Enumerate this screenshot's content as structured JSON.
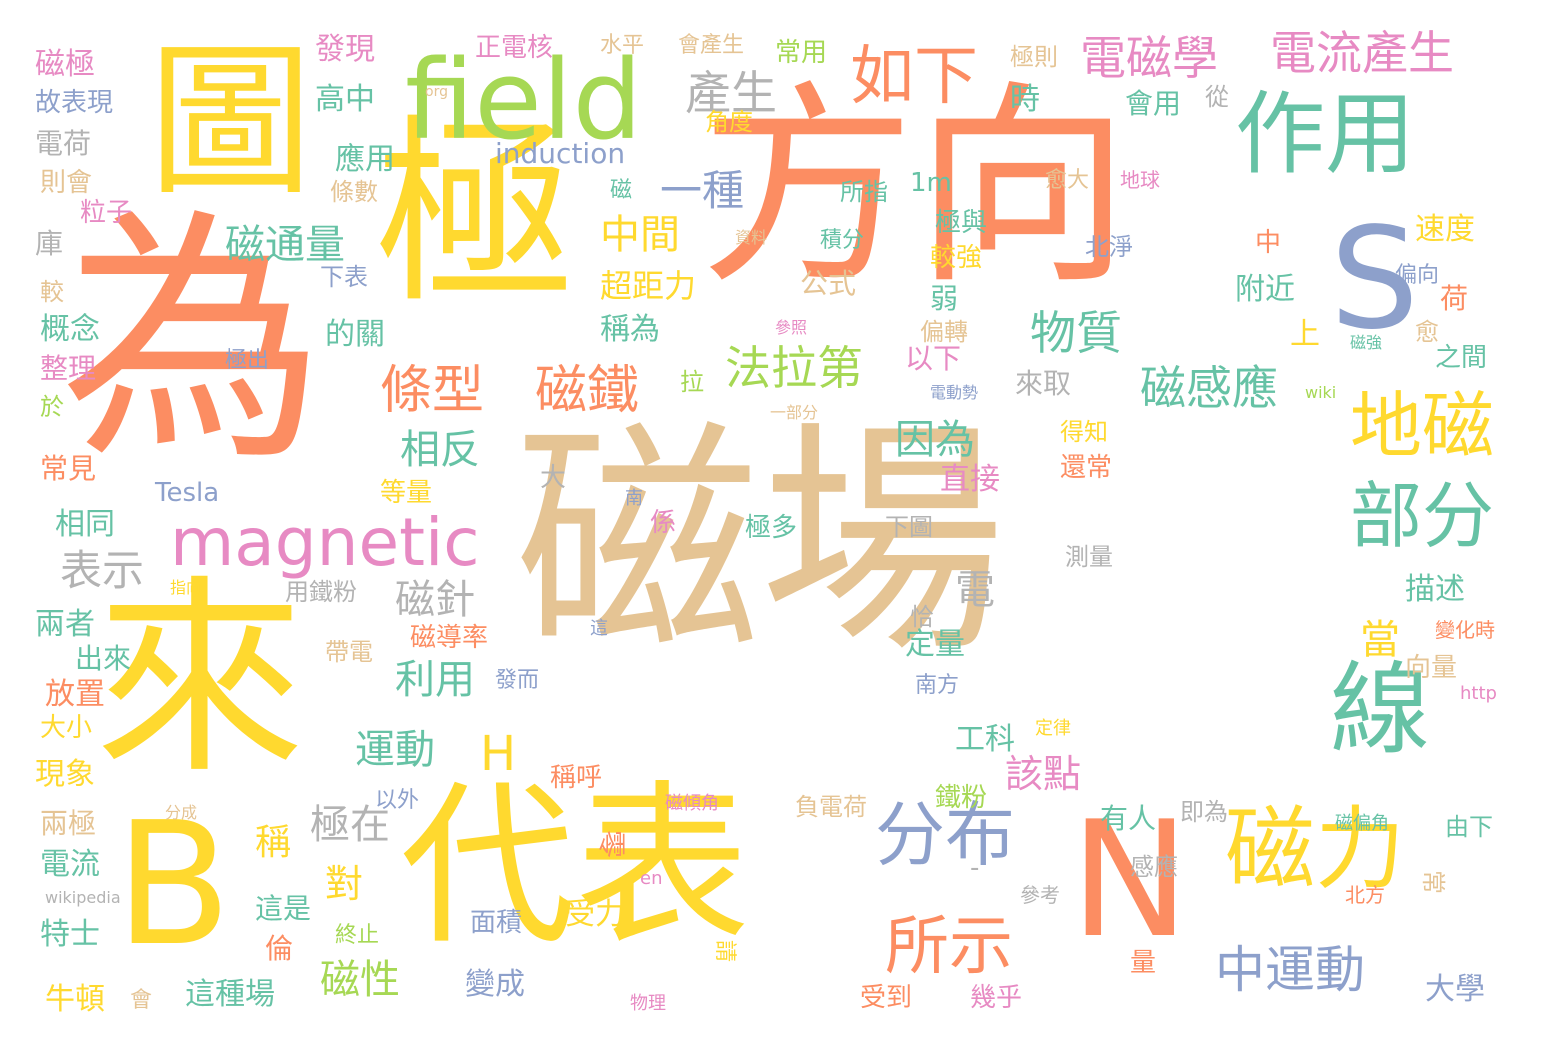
{
  "palette": {
    "tan": "#e5c494",
    "orange": "#fc8d62",
    "yellow": "#ffd92f",
    "green": "#66c2a5",
    "lime": "#a6d854",
    "blue": "#8da0cb",
    "pink": "#e78ac3",
    "gray": "#b3b3b3"
  },
  "words": [
    {
      "text": "磁場",
      "color": "tan"
    },
    {
      "text": "方向",
      "color": "orange"
    },
    {
      "text": "為",
      "color": "orange"
    },
    {
      "text": "極",
      "color": "yellow"
    },
    {
      "text": "圖",
      "color": "yellow"
    },
    {
      "text": "來",
      "color": "yellow"
    },
    {
      "text": "代表",
      "color": "yellow"
    },
    {
      "text": "B",
      "color": "yellow"
    },
    {
      "text": "N",
      "color": "orange"
    },
    {
      "text": "S",
      "color": "blue"
    },
    {
      "text": "field",
      "color": "lime"
    },
    {
      "text": "作用",
      "color": "green"
    },
    {
      "text": "線",
      "color": "green"
    },
    {
      "text": "磁力",
      "color": "yellow"
    },
    {
      "text": "magnetic",
      "color": "pink"
    },
    {
      "text": "分布",
      "color": "blue"
    },
    {
      "text": "地磁",
      "color": "yellow"
    },
    {
      "text": "部分",
      "color": "green"
    },
    {
      "text": "所示",
      "color": "orange"
    },
    {
      "text": "如下",
      "color": "orange"
    },
    {
      "text": "電流產生",
      "color": "pink"
    },
    {
      "text": "電磁學",
      "color": "pink"
    },
    {
      "text": "產生",
      "color": "gray"
    },
    {
      "text": "條型",
      "color": "orange"
    },
    {
      "text": "磁鐵",
      "color": "orange"
    },
    {
      "text": "中運動",
      "color": "blue"
    },
    {
      "text": "磁通量",
      "color": "green"
    },
    {
      "text": "H",
      "color": "yellow"
    },
    {
      "text": "物質",
      "color": "green"
    },
    {
      "text": "磁感應",
      "color": "green"
    },
    {
      "text": "法拉第",
      "color": "lime"
    },
    {
      "text": "中間",
      "color": "yellow"
    },
    {
      "text": "一種",
      "color": "blue"
    },
    {
      "text": "表示",
      "color": "gray"
    },
    {
      "text": "相反",
      "color": "green"
    },
    {
      "text": "因為",
      "color": "green"
    },
    {
      "text": "磁針",
      "color": "gray"
    },
    {
      "text": "利用",
      "color": "green"
    },
    {
      "text": "運動",
      "color": "green"
    },
    {
      "text": "極在",
      "color": "gray"
    },
    {
      "text": "磁性",
      "color": "lime"
    },
    {
      "text": "電",
      "color": "gray"
    },
    {
      "text": "該點",
      "color": "pink"
    },
    {
      "text": "對",
      "color": "yellow"
    },
    {
      "text": "稱",
      "color": "yellow"
    },
    {
      "text": "當",
      "color": "yellow"
    },
    {
      "text": "induction",
      "color": "blue"
    },
    {
      "text": "發現",
      "color": "pink"
    },
    {
      "text": "高中",
      "color": "green"
    },
    {
      "text": "正電核",
      "color": "pink"
    },
    {
      "text": "水平",
      "color": "tan"
    },
    {
      "text": "會產生",
      "color": "tan"
    },
    {
      "text": "常用",
      "color": "lime"
    },
    {
      "text": "極則",
      "color": "tan"
    },
    {
      "text": "時",
      "color": "green"
    },
    {
      "text": "會用",
      "color": "green"
    },
    {
      "text": "從",
      "color": "gray"
    },
    {
      "text": "磁極",
      "color": "pink"
    },
    {
      "text": "故表現",
      "color": "blue"
    },
    {
      "text": "電荷",
      "color": "gray"
    },
    {
      "text": "則會",
      "color": "tan"
    },
    {
      "text": "粒子",
      "color": "pink"
    },
    {
      "text": "庫",
      "color": "gray"
    },
    {
      "text": "較",
      "color": "tan"
    },
    {
      "text": "概念",
      "color": "green"
    },
    {
      "text": "整理",
      "color": "pink"
    },
    {
      "text": "於",
      "color": "lime"
    },
    {
      "text": "常見",
      "color": "orange"
    },
    {
      "text": "相同",
      "color": "green"
    },
    {
      "text": "兩者",
      "color": "green"
    },
    {
      "text": "出來",
      "color": "green"
    },
    {
      "text": "放置",
      "color": "orange"
    },
    {
      "text": "大小",
      "color": "yellow"
    },
    {
      "text": "現象",
      "color": "yellow"
    },
    {
      "text": "兩極",
      "color": "tan"
    },
    {
      "text": "電流",
      "color": "green"
    },
    {
      "text": "特士",
      "color": "green"
    },
    {
      "text": "牛頓",
      "color": "yellow"
    },
    {
      "text": "會",
      "color": "tan"
    },
    {
      "text": "Tesla",
      "color": "blue"
    },
    {
      "text": "應用",
      "color": "green"
    },
    {
      "text": "條數",
      "color": "tan"
    },
    {
      "text": "下表",
      "color": "blue"
    },
    {
      "text": "的關",
      "color": "green"
    },
    {
      "text": "超距力",
      "color": "yellow"
    },
    {
      "text": "公式",
      "color": "tan"
    },
    {
      "text": "稱為",
      "color": "green"
    },
    {
      "text": "拉",
      "color": "lime"
    },
    {
      "text": "所指",
      "color": "green"
    },
    {
      "text": "1m",
      "color": "green"
    },
    {
      "text": "磁",
      "color": "green"
    },
    {
      "text": "積分",
      "color": "green"
    },
    {
      "text": "資料",
      "color": "tan"
    },
    {
      "text": "極與",
      "color": "green"
    },
    {
      "text": "較強",
      "color": "yellow"
    },
    {
      "text": "弱",
      "color": "green"
    },
    {
      "text": "偏轉",
      "color": "tan"
    },
    {
      "text": "以下",
      "color": "pink"
    },
    {
      "text": "來取",
      "color": "gray"
    },
    {
      "text": "直接",
      "color": "pink"
    },
    {
      "text": "等量",
      "color": "yellow"
    },
    {
      "text": "大",
      "color": "gray"
    },
    {
      "text": "係",
      "color": "pink"
    },
    {
      "text": "極多",
      "color": "green"
    },
    {
      "text": "下圖",
      "color": "gray"
    },
    {
      "text": "測量",
      "color": "gray"
    },
    {
      "text": "恰",
      "color": "gray"
    },
    {
      "text": "這",
      "color": "blue"
    },
    {
      "text": "帶電",
      "color": "tan"
    },
    {
      "text": "磁導率",
      "color": "orange"
    },
    {
      "text": "發而",
      "color": "blue"
    },
    {
      "text": "用鐵粉",
      "color": "gray"
    },
    {
      "text": "指向",
      "color": "yellow"
    },
    {
      "text": "南",
      "color": "blue"
    },
    {
      "text": "工科",
      "color": "green"
    },
    {
      "text": "定律",
      "color": "yellow"
    },
    {
      "text": "南方",
      "color": "blue"
    },
    {
      "text": "定量",
      "color": "green"
    },
    {
      "text": "描述",
      "color": "green"
    },
    {
      "text": "向量",
      "color": "tan"
    },
    {
      "text": "變化時",
      "color": "orange"
    },
    {
      "text": "http",
      "color": "pink"
    },
    {
      "text": "稱呼",
      "color": "orange"
    },
    {
      "text": "以外",
      "color": "blue"
    },
    {
      "text": "磁傾角",
      "color": "pink"
    },
    {
      "text": "負電荷",
      "color": "tan"
    },
    {
      "text": "即為",
      "color": "gray"
    },
    {
      "text": "鐵粉",
      "color": "lime"
    },
    {
      "text": "有人",
      "color": "green"
    },
    {
      "text": "磁偏角",
      "color": "green"
    },
    {
      "text": "由下",
      "color": "green"
    },
    {
      "text": "分成",
      "color": "tan"
    },
    {
      "text": "零",
      "color": "orange"
    },
    {
      "text": "en",
      "color": "pink"
    },
    {
      "text": "感應",
      "color": "gray"
    },
    {
      "text": "參考",
      "color": "gray"
    },
    {
      "text": "-",
      "color": "gray"
    },
    {
      "text": "北方",
      "color": "orange"
    },
    {
      "text": "常",
      "color": "tan"
    },
    {
      "text": "受力",
      "color": "yellow"
    },
    {
      "text": "面積",
      "color": "blue"
    },
    {
      "text": "wikipedia",
      "color": "gray"
    },
    {
      "text": "這是",
      "color": "green"
    },
    {
      "text": "終止",
      "color": "lime"
    },
    {
      "text": "倫",
      "color": "orange"
    },
    {
      "text": "請",
      "color": "yellow"
    },
    {
      "text": "量",
      "color": "orange"
    },
    {
      "text": "變成",
      "color": "blue"
    },
    {
      "text": "這種場",
      "color": "green"
    },
    {
      "text": "受到",
      "color": "orange"
    },
    {
      "text": "幾乎",
      "color": "pink"
    },
    {
      "text": "物理",
      "color": "pink"
    },
    {
      "text": "大學",
      "color": "blue"
    },
    {
      "text": "愈大",
      "color": "tan"
    },
    {
      "text": "地球",
      "color": "pink"
    },
    {
      "text": "速度",
      "color": "yellow"
    },
    {
      "text": "北淨",
      "color": "blue"
    },
    {
      "text": "中",
      "color": "orange"
    },
    {
      "text": "偏向",
      "color": "blue"
    },
    {
      "text": "荷",
      "color": "orange"
    },
    {
      "text": "附近",
      "color": "green"
    },
    {
      "text": "上",
      "color": "yellow"
    },
    {
      "text": "愈",
      "color": "tan"
    },
    {
      "text": "之間",
      "color": "green"
    },
    {
      "text": "磁強",
      "color": "green"
    },
    {
      "text": "wiki",
      "color": "lime"
    },
    {
      "text": "得知",
      "color": "yellow"
    },
    {
      "text": "還常",
      "color": "orange"
    },
    {
      "text": "電動勢",
      "color": "blue"
    },
    {
      "text": "一部分",
      "color": "tan"
    },
    {
      "text": "參照",
      "color": "pink"
    },
    {
      "text": "極出",
      "color": "blue"
    },
    {
      "text": "角度",
      "color": "yellow"
    },
    {
      "text": "org",
      "color": "tan"
    }
  ]
}
